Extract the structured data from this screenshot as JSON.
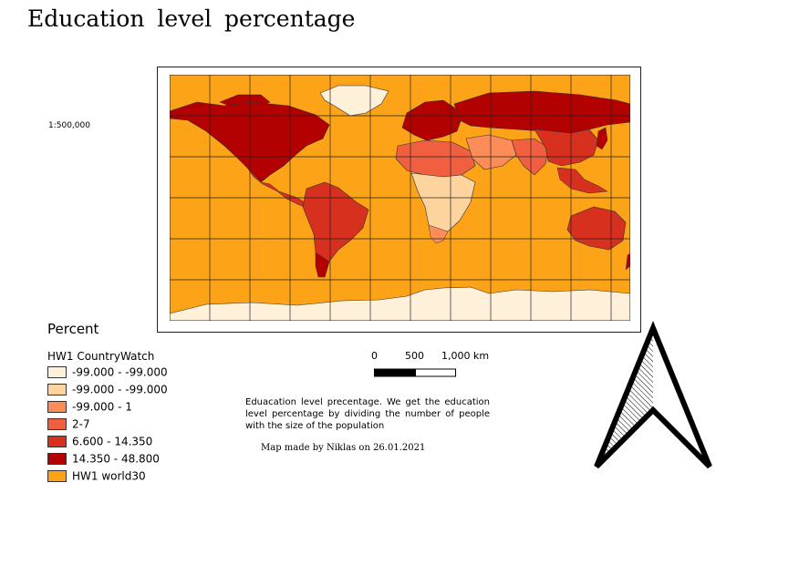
{
  "title": "Education  level  percentage",
  "scale_ratio": "1:500,000",
  "legend": {
    "title": "Percent",
    "layer": "HW1 CountryWatch",
    "classes": [
      {
        "label": "-99.000 - -99.000",
        "color": "#fef0d9"
      },
      {
        "label": "-99.000 - -99.000",
        "color": "#fdd49e"
      },
      {
        "label": "-99.000 - 1",
        "color": "#fc8d59"
      },
      {
        "label": "2-7",
        "color": "#f06040"
      },
      {
        "label": "6.600 - 14.350",
        "color": "#d7301f"
      },
      {
        "label": "14.350 - 48.800",
        "color": "#b30000"
      },
      {
        "label": "HW1 world30",
        "color": "#fda318"
      }
    ]
  },
  "scalebar": {
    "labels": [
      "0",
      "500",
      "1,000 km"
    ]
  },
  "description": "Eduacation level precentage. We get the education level percentage by dividing the number of people with the size of the population",
  "credit": "Map made by Niklas on 26.01.2021",
  "colors": {
    "ocean": "#fda318",
    "antarctica": "#fef0d9",
    "greenland": "#fef0d9",
    "north_america": "#b30000",
    "south_america": "#d7301f",
    "europe": "#b30000",
    "russia": "#b30000",
    "africa_north": "#f06040",
    "africa_central": "#fdd49e",
    "middle_east": "#fc8d59",
    "asia_south": "#f06040",
    "china": "#d7301f",
    "australia": "#d7301f"
  }
}
